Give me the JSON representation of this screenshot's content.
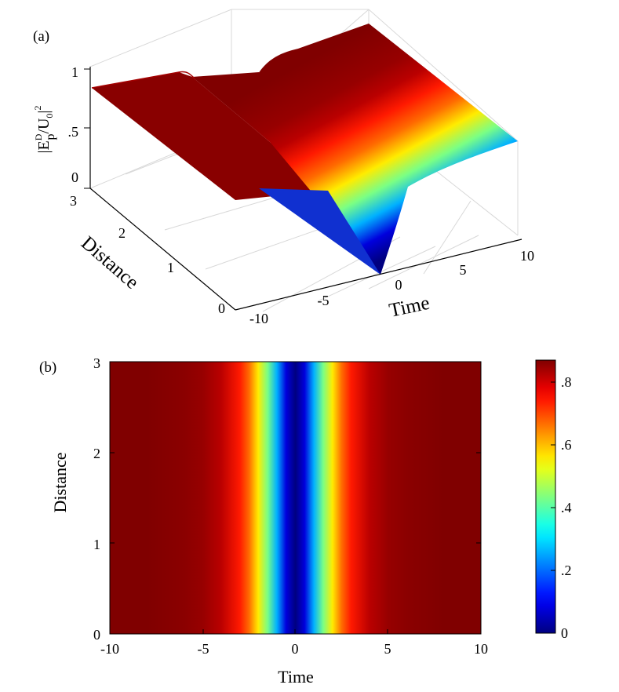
{
  "panel_a": {
    "label": "(a)",
    "z_label": {
      "main": "|E",
      "sup": "D",
      "sub": "p",
      "mid": "/U",
      "sub2": "0",
      "end": "|",
      "sup2": "2"
    },
    "x_label": "Time",
    "y_label": "Distance",
    "x_ticks": [
      "-10",
      "-5",
      "0",
      "5",
      "10"
    ],
    "y_ticks": [
      "0",
      "1",
      "2",
      "3"
    ],
    "z_ticks": [
      "0",
      ".5",
      "1"
    ]
  },
  "panel_b": {
    "label": "(b)",
    "x_label": "Time",
    "y_label": "Distance",
    "x_ticks": [
      "-10",
      "-5",
      "0",
      "5",
      "10"
    ],
    "y_ticks": [
      "0",
      "1",
      "2",
      "3"
    ],
    "colorbar_ticks": [
      "0",
      ".2",
      ".4",
      ".6",
      ".8"
    ]
  },
  "colormap": "jet",
  "chart_data": [
    {
      "type": "surface",
      "title": "",
      "xlabel": "Time",
      "ylabel": "Distance",
      "zlabel": "|E_p^D/U_0|^2",
      "xlim": [
        -10,
        10
      ],
      "ylim": [
        0,
        3
      ],
      "zlim": [
        0,
        1
      ],
      "x": [
        -10,
        -8,
        -6,
        -5,
        -4,
        -3,
        -2.5,
        -2,
        -1.5,
        -1,
        -0.5,
        0,
        0.5,
        1,
        1.5,
        2,
        2.5,
        3,
        4,
        5,
        6,
        8,
        10
      ],
      "z_profile": [
        0.87,
        0.87,
        0.86,
        0.85,
        0.82,
        0.74,
        0.67,
        0.56,
        0.43,
        0.26,
        0.08,
        0.0,
        0.08,
        0.26,
        0.43,
        0.56,
        0.67,
        0.74,
        0.82,
        0.85,
        0.86,
        0.87,
        0.87
      ],
      "distance_invariant": true,
      "grid": true
    },
    {
      "type": "heatmap",
      "title": "",
      "xlabel": "Time",
      "ylabel": "Distance",
      "xlim": [
        -10,
        10
      ],
      "ylim": [
        0,
        3
      ],
      "clim": [
        0,
        0.87
      ],
      "x": [
        -10,
        -8,
        -6,
        -5,
        -4,
        -3,
        -2.5,
        -2,
        -1.5,
        -1,
        -0.5,
        0,
        0.5,
        1,
        1.5,
        2,
        2.5,
        3,
        4,
        5,
        6,
        8,
        10
      ],
      "z_profile": [
        0.87,
        0.87,
        0.86,
        0.85,
        0.82,
        0.74,
        0.67,
        0.56,
        0.43,
        0.26,
        0.08,
        0.0,
        0.08,
        0.26,
        0.43,
        0.56,
        0.67,
        0.74,
        0.82,
        0.85,
        0.86,
        0.87,
        0.87
      ],
      "distance_invariant": true,
      "colorbar": true
    }
  ]
}
